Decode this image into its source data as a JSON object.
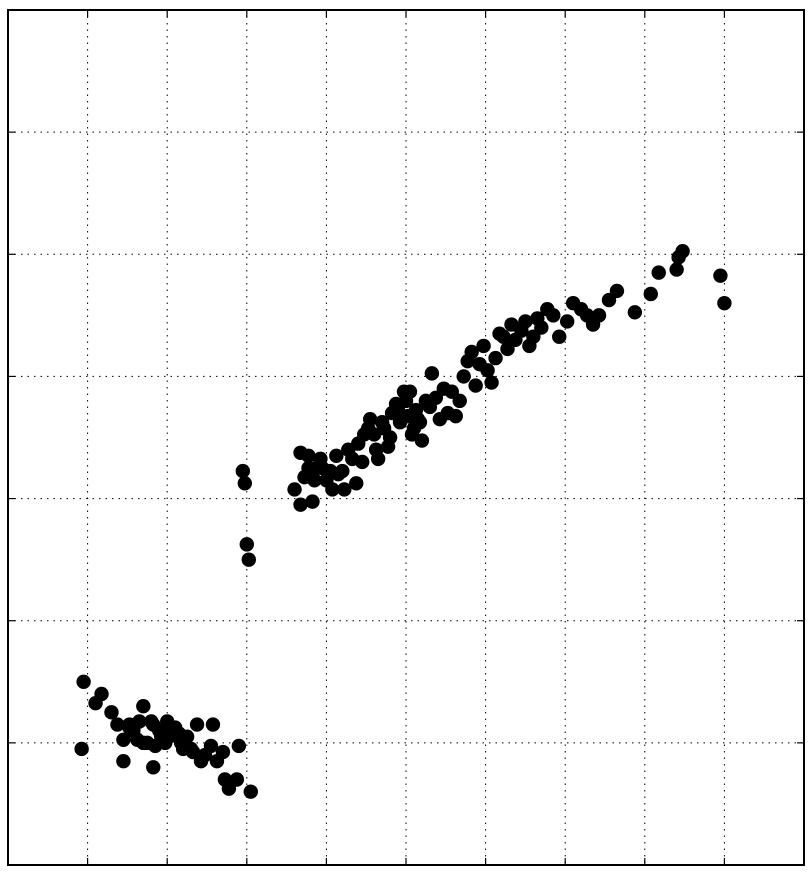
{
  "chart_data": {
    "type": "scatter",
    "title": "",
    "xlabel": "",
    "ylabel": "",
    "xlim": [
      4.0,
      8.0
    ],
    "ylim": [
      0.0,
      2.8
    ],
    "x_ticks": [
      4.4,
      4.8,
      5.2,
      5.6,
      6.0,
      6.4,
      6.8,
      7.2,
      7.6
    ],
    "y_ticks": [
      0.4,
      0.8,
      1.2,
      1.6,
      2.0,
      2.4
    ],
    "grid": true,
    "marker_color": "#000000",
    "series": [
      {
        "x": [
          4.38,
          4.47,
          4.52,
          4.55,
          4.58,
          4.61,
          4.63,
          4.65,
          4.66,
          4.68,
          4.7,
          4.72,
          4.73,
          4.76,
          4.79,
          4.8,
          4.82,
          4.84,
          4.87,
          4.88,
          4.9,
          4.95,
          4.99,
          5.02,
          5.05,
          5.09,
          5.11,
          5.15,
          5.16,
          5.22,
          4.77,
          4.44,
          4.37,
          4.61,
          4.68,
          4.73,
          4.86,
          4.92,
          4.97,
          5.03,
          5.08,
          4.58,
          4.74,
          4.81,
          4.93
        ],
        "y": [
          0.6,
          0.56,
          0.5,
          0.46,
          0.41,
          0.45,
          0.44,
          0.41,
          0.47,
          0.52,
          0.4,
          0.47,
          0.46,
          0.44,
          0.4,
          0.47,
          0.43,
          0.45,
          0.4,
          0.38,
          0.42,
          0.46,
          0.36,
          0.39,
          0.34,
          0.28,
          0.25,
          0.28,
          0.39,
          0.24,
          0.42,
          0.53,
          0.38,
          0.46,
          0.4,
          0.32,
          0.43,
          0.38,
          0.34,
          0.46,
          0.37,
          0.34,
          0.39,
          0.42,
          0.37
        ]
      },
      {
        "x": [
          5.18,
          5.19,
          5.2,
          5.21,
          5.44,
          5.47,
          5.47,
          5.49,
          5.51,
          5.51,
          5.53,
          5.54,
          5.55,
          5.57,
          5.58,
          5.6,
          5.62,
          5.63,
          5.65,
          5.66,
          5.68,
          5.69,
          5.71,
          5.73,
          5.75,
          5.76,
          5.78,
          5.79,
          5.81,
          5.82,
          5.84,
          5.85,
          5.86,
          5.88,
          5.89,
          5.91,
          5.92,
          5.93,
          5.95,
          5.96,
          5.97,
          5.99,
          6.0,
          6.01,
          6.02,
          6.03,
          6.04,
          6.05,
          6.06,
          6.07,
          6.08,
          6.1,
          6.12,
          6.13,
          6.15,
          6.17,
          6.19,
          6.21,
          6.23,
          6.25,
          6.27,
          6.29,
          6.31,
          6.33,
          6.35,
          6.37,
          6.39,
          6.41,
          6.43,
          6.45,
          6.47,
          6.49,
          6.51,
          6.53,
          6.55,
          6.58,
          6.6,
          6.62,
          6.64,
          6.66,
          6.68,
          6.71,
          6.74,
          6.77,
          6.81,
          6.84,
          6.88,
          6.91,
          6.94,
          6.97,
          7.02,
          7.06,
          7.15,
          7.23,
          7.27,
          7.36,
          7.37,
          7.39,
          7.58,
          7.6
        ],
        "y": [
          1.29,
          1.25,
          1.05,
          1.0,
          1.23,
          1.35,
          1.18,
          1.27,
          1.34,
          1.3,
          1.19,
          1.26,
          1.3,
          1.33,
          1.3,
          1.26,
          1.29,
          1.23,
          1.34,
          1.28,
          1.29,
          1.23,
          1.36,
          1.33,
          1.25,
          1.38,
          1.32,
          1.41,
          1.43,
          1.46,
          1.41,
          1.36,
          1.33,
          1.45,
          1.43,
          1.37,
          1.4,
          1.48,
          1.51,
          1.49,
          1.45,
          1.55,
          1.52,
          1.47,
          1.55,
          1.41,
          1.43,
          1.49,
          1.46,
          1.45,
          1.39,
          1.52,
          1.5,
          1.61,
          1.53,
          1.46,
          1.56,
          1.48,
          1.55,
          1.47,
          1.52,
          1.6,
          1.65,
          1.68,
          1.57,
          1.64,
          1.7,
          1.62,
          1.58,
          1.66,
          1.74,
          1.73,
          1.69,
          1.77,
          1.72,
          1.75,
          1.78,
          1.7,
          1.73,
          1.79,
          1.76,
          1.82,
          1.8,
          1.73,
          1.78,
          1.84,
          1.82,
          1.8,
          1.77,
          1.8,
          1.85,
          1.88,
          1.81,
          1.87,
          1.94,
          1.95,
          1.99,
          2.01,
          1.93,
          1.84
        ]
      }
    ]
  }
}
